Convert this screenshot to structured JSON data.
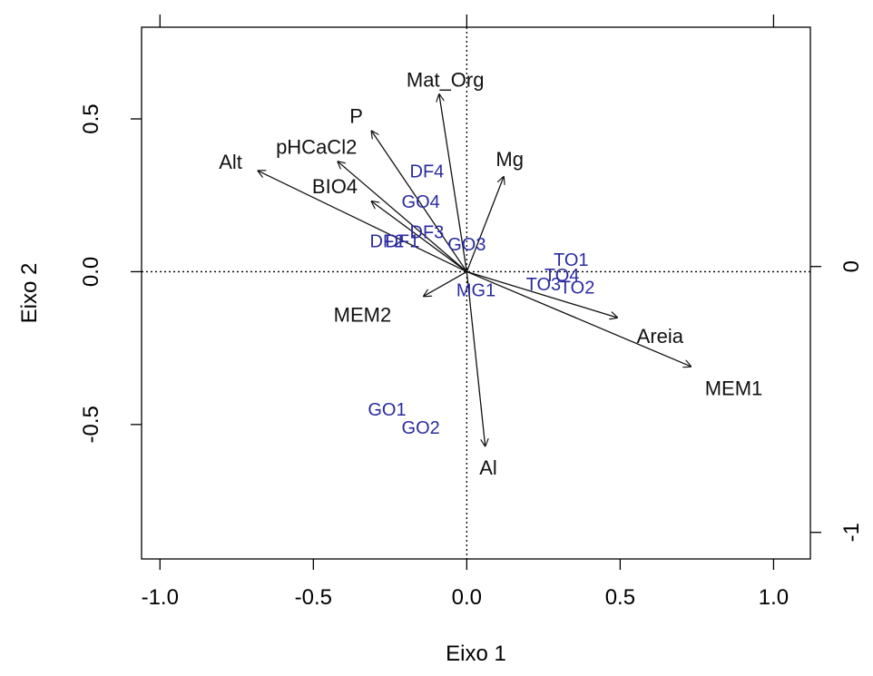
{
  "chart_data": {
    "type": "scatter",
    "subtype": "biplot",
    "xlabel": "Eixo 1",
    "ylabel": "Eixo 2",
    "xlim": [
      -1.06,
      1.12
    ],
    "ylim": [
      -0.94,
      0.8
    ],
    "x_ticks": [
      "-1.0",
      "-0.5",
      "0.0",
      "0.5",
      "1.0"
    ],
    "x_tick_values": [
      -1.0,
      -0.5,
      0.0,
      0.5,
      1.0
    ],
    "y_ticks": [
      "-0.5",
      "0.0",
      "0.5"
    ],
    "y_tick_values": [
      -0.5,
      0.0,
      0.5
    ],
    "top_axis_ticks": [
      -1.0,
      0.0,
      1.0
    ],
    "right_axis_ticks": [
      {
        "value": 0,
        "label": "0"
      },
      {
        "value": -1,
        "label": "-1"
      }
    ],
    "right_axis_range": [
      -1.1,
      0.9
    ],
    "reference_lines": {
      "x": 0,
      "y": 0,
      "style": "dotted"
    },
    "point_color": "#2b2ba0",
    "vector_color": "#111111",
    "points": [
      {
        "label": "DF4",
        "x": -0.13,
        "y": 0.33
      },
      {
        "label": "GO4",
        "x": -0.15,
        "y": 0.23
      },
      {
        "label": "DF3",
        "x": -0.13,
        "y": 0.13
      },
      {
        "label": "DF2",
        "x": -0.26,
        "y": 0.1
      },
      {
        "label": "DF1",
        "x": -0.21,
        "y": 0.1
      },
      {
        "label": "GO3",
        "x": 0.0,
        "y": 0.09
      },
      {
        "label": "TO1",
        "x": 0.34,
        "y": 0.04
      },
      {
        "label": "TO4",
        "x": 0.31,
        "y": -0.01
      },
      {
        "label": "TO3",
        "x": 0.25,
        "y": -0.04
      },
      {
        "label": "TO2",
        "x": 0.36,
        "y": -0.05
      },
      {
        "label": "MG1",
        "x": 0.03,
        "y": -0.06
      },
      {
        "label": "GO1",
        "x": -0.26,
        "y": -0.45
      },
      {
        "label": "GO2",
        "x": -0.15,
        "y": -0.51
      }
    ],
    "vectors": [
      {
        "label": "Mat_Org",
        "x": -0.09,
        "y": 0.58,
        "lx": -0.07,
        "ly": 0.63
      },
      {
        "label": "P",
        "x": -0.31,
        "y": 0.46,
        "lx": -0.36,
        "ly": 0.51
      },
      {
        "label": "pHCaCl2",
        "x": -0.42,
        "y": 0.36,
        "lx": -0.49,
        "ly": 0.41
      },
      {
        "label": "Alt",
        "x": -0.68,
        "y": 0.33,
        "lx": -0.77,
        "ly": 0.36
      },
      {
        "label": "BIO4",
        "x": -0.31,
        "y": 0.23,
        "lx": -0.43,
        "ly": 0.28
      },
      {
        "label": "Mg",
        "x": 0.12,
        "y": 0.31,
        "lx": 0.14,
        "ly": 0.37
      },
      {
        "label": "MEM2",
        "x": -0.14,
        "y": -0.08,
        "lx": -0.34,
        "ly": -0.14
      },
      {
        "label": "Areia",
        "x": 0.49,
        "y": -0.15,
        "lx": 0.63,
        "ly": -0.21
      },
      {
        "label": "MEM1",
        "x": 0.73,
        "y": -0.31,
        "lx": 0.87,
        "ly": -0.38
      },
      {
        "label": "Al",
        "x": 0.06,
        "y": -0.57,
        "lx": 0.07,
        "ly": -0.64
      }
    ]
  }
}
